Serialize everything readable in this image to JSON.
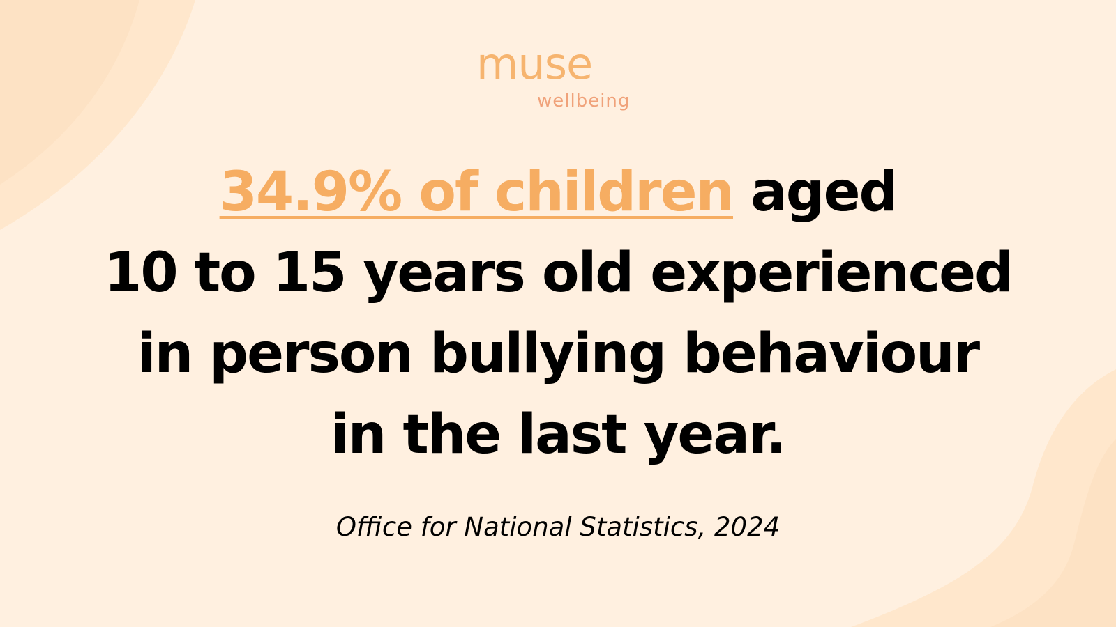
{
  "brand": {
    "name": "muse",
    "tagline": "wellbeing"
  },
  "headline": {
    "highlight": "34.9% of children",
    "line1_rest": " aged",
    "line2": "10 to 15 years old experienced",
    "line3": "in person bullying behaviour",
    "line4": "in the last year."
  },
  "source": "Office for National Statistics, 2024",
  "colors": {
    "background": "#fff0e0",
    "shape_light": "#ffe6cc",
    "accent": "#f6ad62",
    "text": "#000000"
  }
}
